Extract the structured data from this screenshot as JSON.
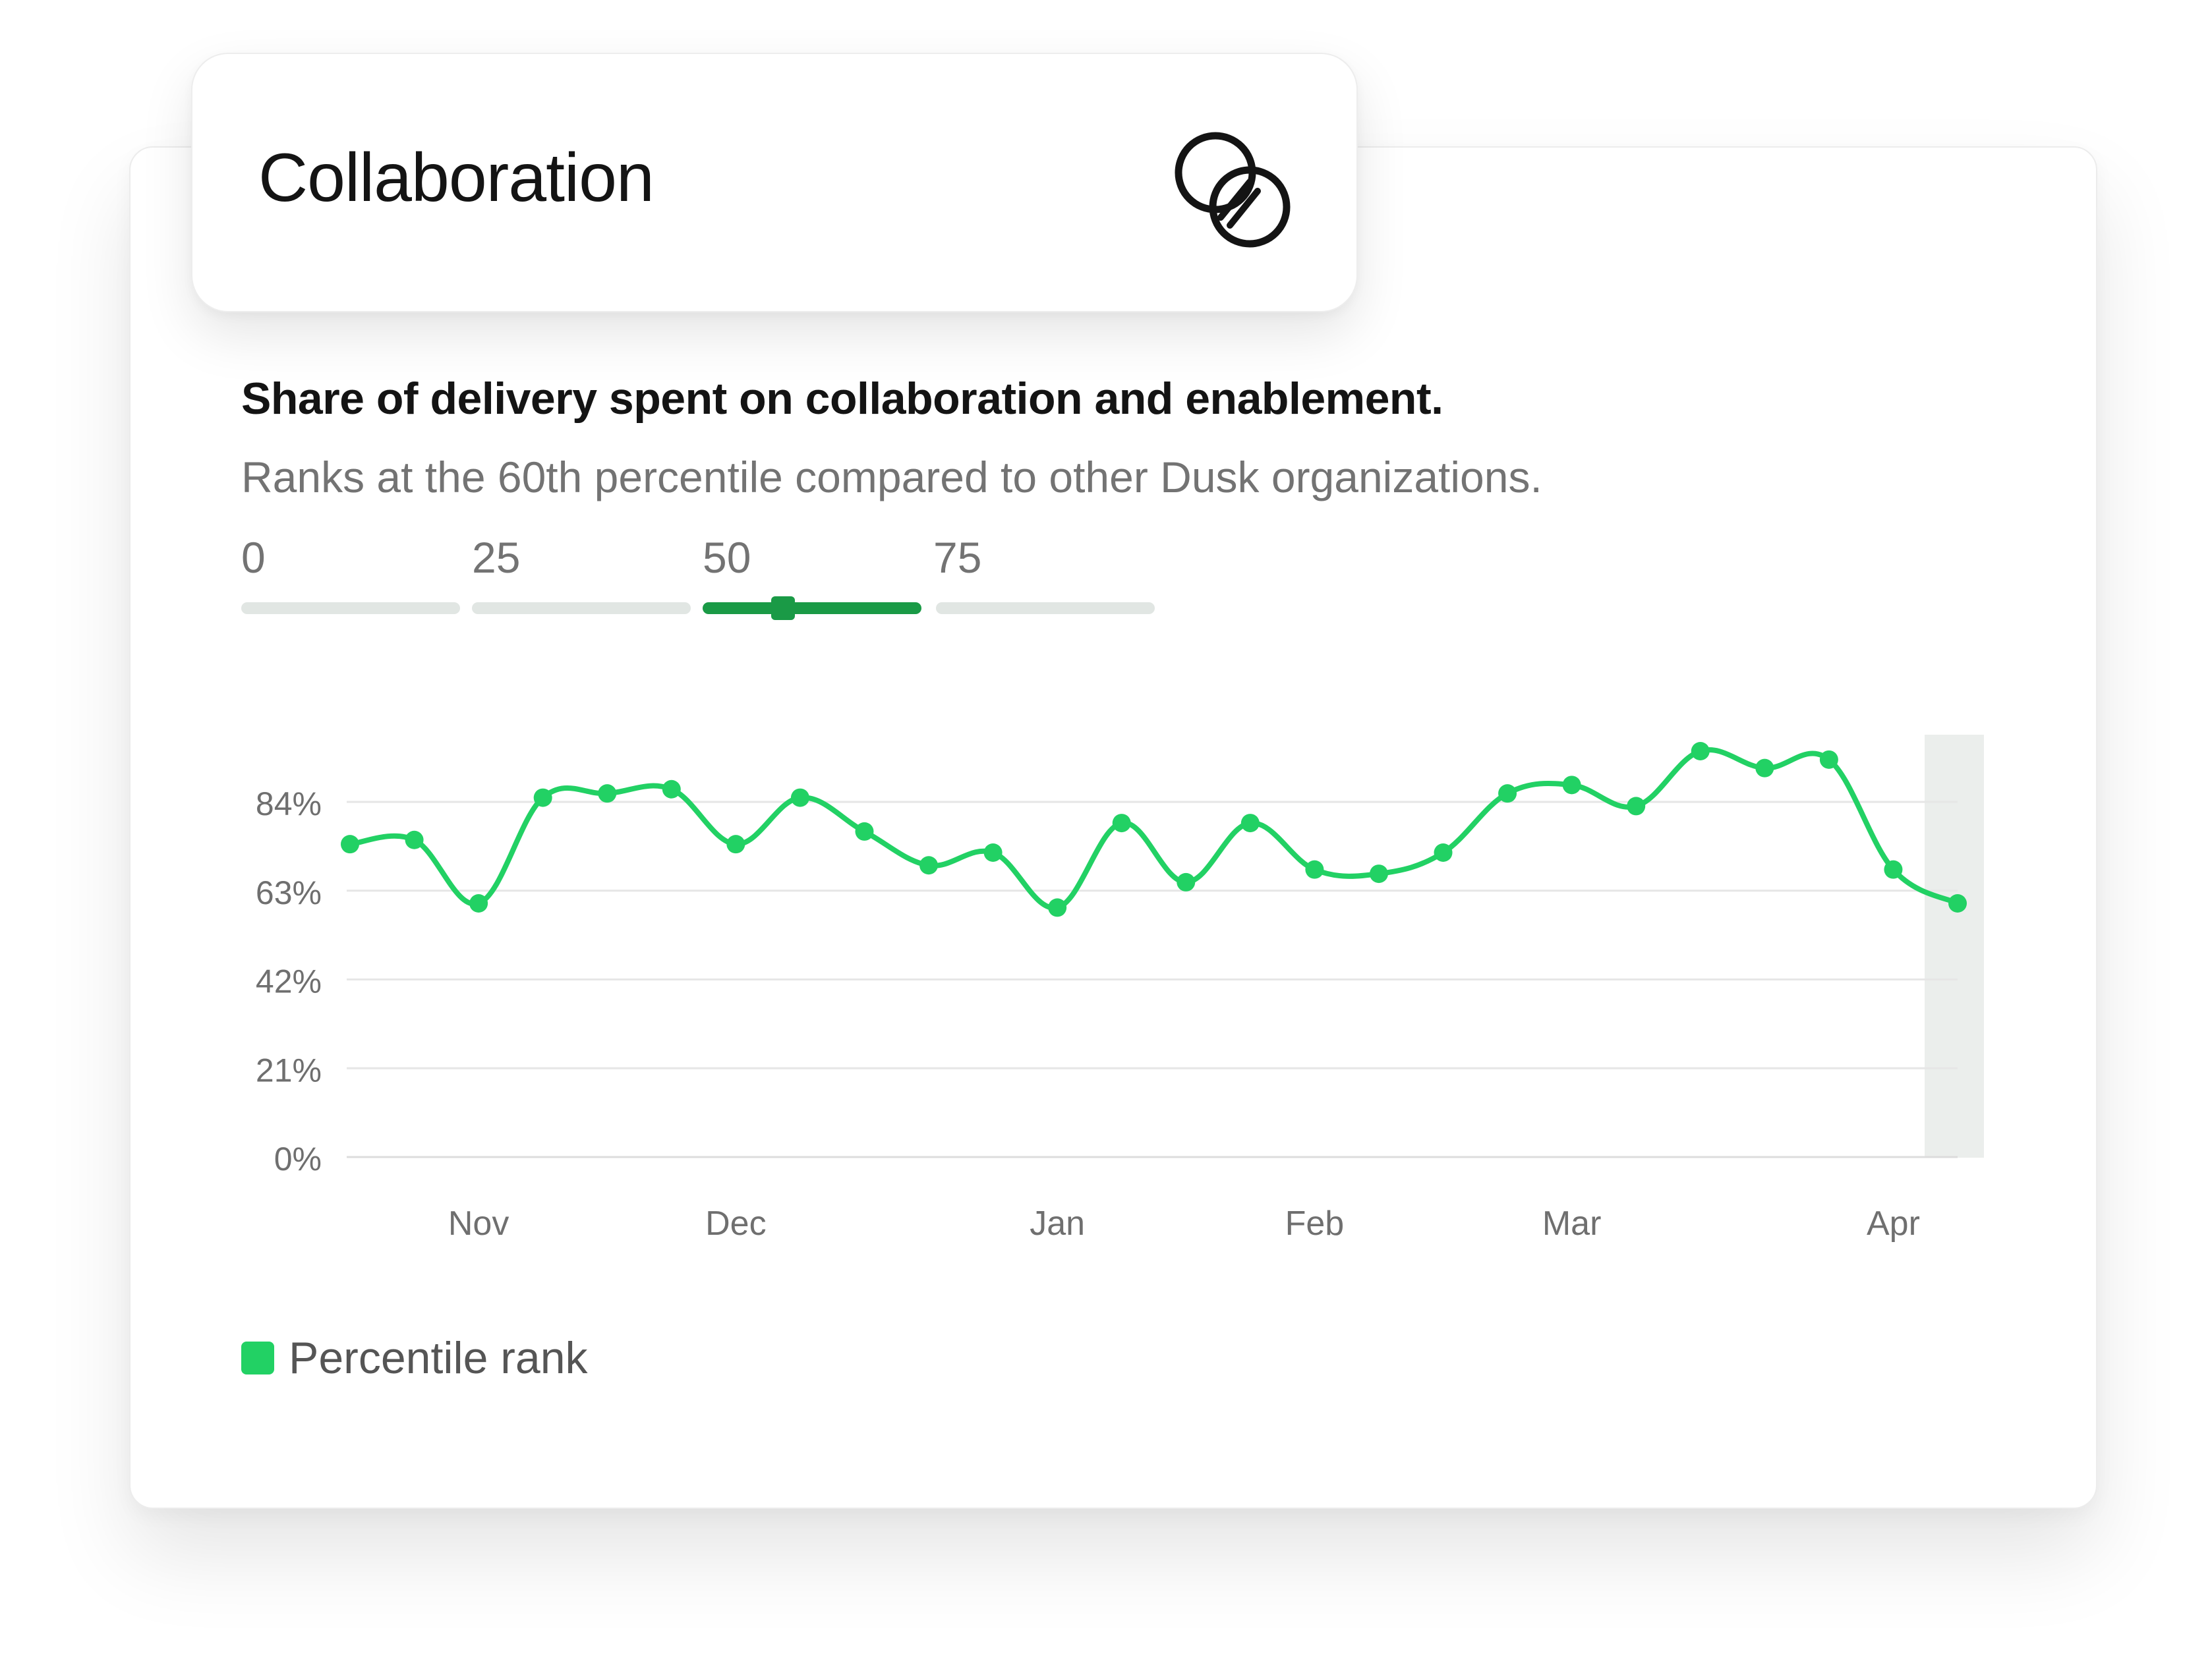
{
  "card": {
    "title": "Collaboration",
    "icon": "overlapping-circles-icon",
    "headline": "Share of delivery spent on collaboration and enablement.",
    "subtitle": "Ranks at the 60th percentile compared to other Dusk organizations."
  },
  "percentile_scale": {
    "labels": [
      "0",
      "25",
      "50",
      "75"
    ],
    "active_segment": 2,
    "value": 60
  },
  "colors": {
    "series": "#22d164",
    "scale_active": "#1a9a46",
    "scale_inactive": "#e1e6e3"
  },
  "chart_data": {
    "type": "line",
    "ylim": [
      0,
      100
    ],
    "yticks": [
      "0%",
      "21%",
      "42%",
      "63%",
      "84%"
    ],
    "ytick_values": [
      0,
      21,
      42,
      63,
      84
    ],
    "xtick_labels": [
      "Nov",
      "Dec",
      "Jan",
      "Feb",
      "Mar",
      "Apr"
    ],
    "xtick_index": [
      2,
      6,
      11,
      15,
      19,
      24
    ],
    "highlight_last": true,
    "grid": true,
    "legend": "bottom-left",
    "series": [
      {
        "name": "Percentile rank",
        "values": [
          74,
          75,
          60,
          85,
          86,
          87,
          74,
          85,
          77,
          69,
          72,
          59,
          79,
          65,
          79,
          68,
          67,
          72,
          86,
          88,
          83,
          96,
          92,
          94,
          68,
          60
        ]
      }
    ]
  },
  "legend": {
    "label": "Percentile rank"
  }
}
